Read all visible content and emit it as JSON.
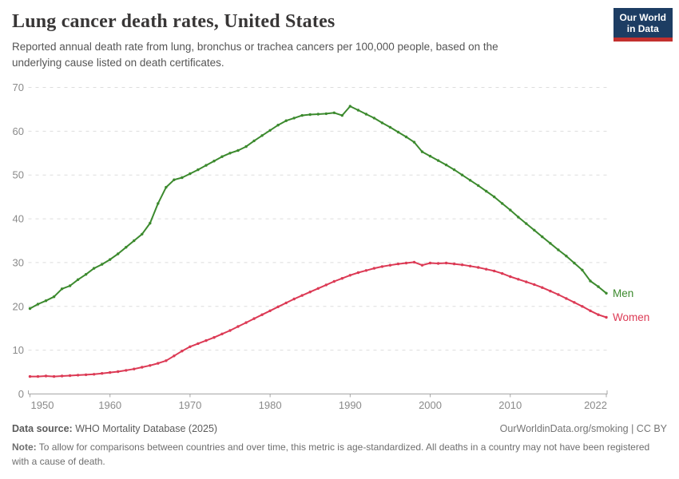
{
  "header": {
    "title": "Lung cancer death rates, United States",
    "subtitle": "Reported annual death rate from lung, bronchus or trachea cancers per 100,000 people, based on the underlying cause listed on death certificates.",
    "logo": {
      "line1": "Our World",
      "line2": "in Data",
      "bg_color": "#1d3d63",
      "accent_color": "#c2302e",
      "text_color": "#ffffff"
    }
  },
  "chart_data": {
    "type": "line",
    "title": "Lung cancer death rates, United States",
    "subtitle": "Reported annual death rate from lung, bronchus or trachea cancers per 100,000 people, based on the underlying cause listed on death certificates.",
    "unit": "deaths per 100,000 people",
    "xlabel": "",
    "ylabel": "",
    "x_range": [
      1950,
      2022
    ],
    "ylim": [
      0,
      70
    ],
    "yticks": [
      0,
      10,
      20,
      30,
      40,
      50,
      60,
      70
    ],
    "xticks": [
      1950,
      1960,
      1970,
      1980,
      1990,
      2000,
      2010,
      2022
    ],
    "grid": "horizontal-dashed",
    "legend_position": "end-of-line-labels",
    "grid_color": "#dddddd",
    "axis_color": "#a5a5a5",
    "tick_label_color": "#8a8a8a",
    "x": [
      1950,
      1951,
      1952,
      1953,
      1954,
      1955,
      1956,
      1957,
      1958,
      1959,
      1960,
      1961,
      1962,
      1963,
      1964,
      1965,
      1966,
      1967,
      1968,
      1969,
      1970,
      1971,
      1972,
      1973,
      1974,
      1975,
      1976,
      1977,
      1978,
      1979,
      1980,
      1981,
      1982,
      1983,
      1984,
      1985,
      1986,
      1987,
      1988,
      1989,
      1990,
      1991,
      1992,
      1993,
      1994,
      1995,
      1996,
      1997,
      1998,
      1999,
      2000,
      2001,
      2002,
      2003,
      2004,
      2005,
      2006,
      2007,
      2008,
      2009,
      2010,
      2011,
      2012,
      2013,
      2014,
      2015,
      2016,
      2017,
      2018,
      2019,
      2020,
      2021,
      2022
    ],
    "series": [
      {
        "name": "Men",
        "color": "#3C8A2E",
        "values": [
          19.5,
          20.5,
          21.3,
          22.2,
          24.0,
          24.7,
          26.1,
          27.3,
          28.7,
          29.6,
          30.7,
          32.0,
          33.5,
          35.0,
          36.5,
          39.0,
          43.5,
          47.2,
          48.9,
          49.4,
          50.3,
          51.2,
          52.2,
          53.2,
          54.2,
          55.0,
          55.6,
          56.5,
          57.8,
          59.0,
          60.2,
          61.4,
          62.4,
          63.0,
          63.6,
          63.8,
          63.9,
          64.0,
          64.2,
          63.6,
          65.7,
          64.8,
          63.9,
          63.0,
          61.9,
          60.9,
          59.8,
          58.7,
          57.5,
          55.3,
          54.3,
          53.3,
          52.3,
          51.2,
          50.0,
          48.8,
          47.6,
          46.3,
          45.0,
          43.5,
          42.0,
          40.4,
          38.9,
          37.4,
          35.9,
          34.4,
          32.9,
          31.5,
          29.9,
          28.3,
          25.8,
          24.5,
          23.0
        ]
      },
      {
        "name": "Women",
        "color": "#DC3A55",
        "values": [
          4.0,
          4.0,
          4.1,
          4.0,
          4.1,
          4.2,
          4.3,
          4.4,
          4.5,
          4.7,
          4.9,
          5.1,
          5.4,
          5.7,
          6.1,
          6.5,
          7.0,
          7.6,
          8.7,
          9.8,
          10.8,
          11.5,
          12.2,
          12.9,
          13.7,
          14.5,
          15.4,
          16.3,
          17.2,
          18.1,
          19.0,
          19.9,
          20.8,
          21.7,
          22.5,
          23.3,
          24.1,
          24.9,
          25.7,
          26.4,
          27.1,
          27.7,
          28.2,
          28.7,
          29.1,
          29.4,
          29.7,
          29.9,
          30.1,
          29.4,
          29.9,
          29.8,
          29.9,
          29.7,
          29.5,
          29.2,
          28.9,
          28.5,
          28.1,
          27.5,
          26.8,
          26.2,
          25.6,
          25.0,
          24.3,
          23.5,
          22.7,
          21.8,
          20.9,
          20.0,
          19.0,
          18.1,
          17.5
        ]
      }
    ]
  },
  "footer": {
    "datasource_label": "Data source:",
    "datasource_value": "WHO Mortality Database (2025)",
    "link": "OurWorldinData.org/smoking | CC BY",
    "note_label": "Note:",
    "note_value": "To allow for comparisons between countries and over time, this metric is age-standardized. All deaths in a country may not have been registered with a cause of death."
  }
}
